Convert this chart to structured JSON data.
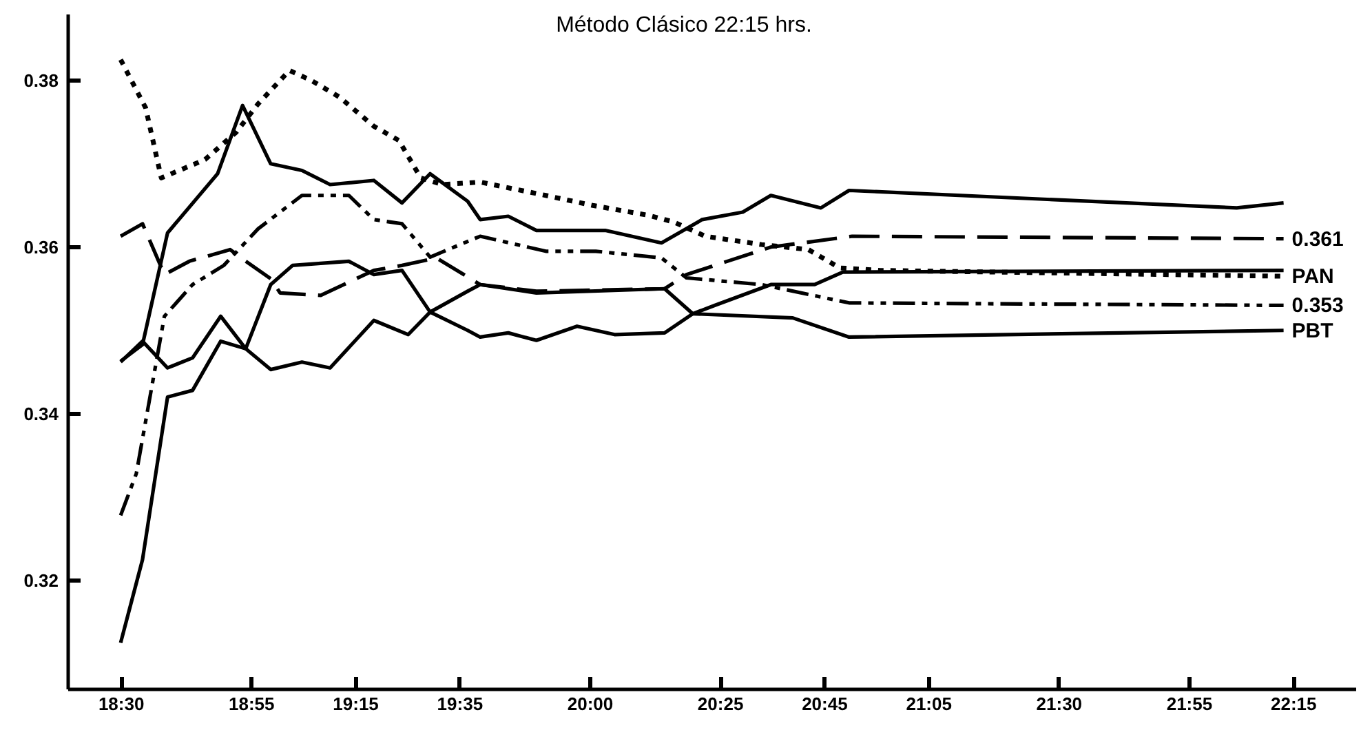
{
  "chart_data": {
    "type": "line",
    "title": "Método Clásico 22:15 hrs.",
    "xlim": [
      18.33,
      22.45
    ],
    "ylim": [
      0.307,
      0.388
    ],
    "xticks": [
      {
        "value": 18.5,
        "label": "18:30"
      },
      {
        "value": 18.9167,
        "label": "18:55"
      },
      {
        "value": 19.25,
        "label": "19:15"
      },
      {
        "value": 19.5833,
        "label": "19:35"
      },
      {
        "value": 20,
        "label": "20:00"
      },
      {
        "value": 20.4167,
        "label": "20:25"
      },
      {
        "value": 20.75,
        "label": "20:45"
      },
      {
        "value": 21.0833,
        "label": "21:05"
      },
      {
        "value": 21.5,
        "label": "21:30"
      },
      {
        "value": 21.9167,
        "label": "21:55"
      },
      {
        "value": 22.25,
        "label": "22:15"
      }
    ],
    "yticks": [
      0.32,
      0.34,
      0.36,
      0.38
    ],
    "grid": false,
    "marker": "none",
    "series": [
      {
        "color": "#000000",
        "line_style": "solid",
        "x": [
          18.5,
          18.57,
          18.65,
          18.81,
          18.89,
          18.98,
          19.08,
          19.17,
          19.31,
          19.4,
          19.49,
          19.61,
          19.65,
          19.74,
          19.83,
          20.05,
          20.23,
          20.36,
          20.49,
          20.58,
          20.74,
          20.83,
          22.07,
          22.22
        ],
        "values": [
          0.3463,
          0.3483,
          0.3617,
          0.3688,
          0.377,
          0.37,
          0.3692,
          0.3675,
          0.368,
          0.3653,
          0.3688,
          0.3655,
          0.3633,
          0.3637,
          0.362,
          0.362,
          0.3605,
          0.3633,
          0.3642,
          0.3662,
          0.3647,
          0.3668,
          0.3647,
          0.3653
        ]
      },
      {
        "name": "0.361",
        "color": "#000000",
        "line_style": "dashed",
        "x": [
          18.5,
          18.57,
          18.64,
          18.72,
          18.85,
          18.9,
          18.98,
          19.01,
          19.14,
          19.31,
          19.4,
          19.51,
          19.65,
          19.83,
          20.24,
          20.31,
          20.58,
          20.84,
          22.22
        ],
        "values": [
          0.3613,
          0.3628,
          0.3567,
          0.3583,
          0.3597,
          0.3583,
          0.3562,
          0.3545,
          0.3542,
          0.3572,
          0.3578,
          0.3587,
          0.3555,
          0.3547,
          0.355,
          0.3567,
          0.36,
          0.3613,
          0.361
        ]
      },
      {
        "name": "PAN",
        "color": "#000000",
        "line_style": "dotted",
        "x": [
          18.5,
          18.58,
          18.63,
          18.77,
          18.87,
          18.94,
          19.04,
          19.11,
          19.2,
          19.31,
          19.39,
          19.46,
          19.53,
          19.65,
          19.86,
          20.01,
          20.19,
          20.27,
          20.37,
          20.55,
          20.7,
          20.8,
          20.93,
          22.22
        ],
        "values": [
          0.3825,
          0.3767,
          0.3683,
          0.3705,
          0.3738,
          0.3772,
          0.3812,
          0.38,
          0.378,
          0.3745,
          0.3728,
          0.3683,
          0.3675,
          0.3678,
          0.3662,
          0.365,
          0.3638,
          0.363,
          0.3613,
          0.3603,
          0.3597,
          0.3575,
          0.3572,
          0.3565
        ]
      },
      {
        "color": "#000000",
        "line_style": "solid",
        "x": [
          18.5,
          18.57,
          18.65,
          18.73,
          18.82,
          18.9,
          18.98,
          19.05,
          19.23,
          19.31,
          19.4,
          19.49,
          19.61,
          19.65,
          19.74,
          19.83,
          19.96,
          20.08,
          20.24,
          20.33,
          20.4,
          20.58,
          20.72,
          20.81,
          22.22
        ],
        "values": [
          0.3462,
          0.3487,
          0.3455,
          0.3467,
          0.3517,
          0.3478,
          0.3555,
          0.3578,
          0.3583,
          0.3567,
          0.3572,
          0.3522,
          0.35,
          0.3492,
          0.3497,
          0.3488,
          0.3505,
          0.3495,
          0.3497,
          0.352,
          0.353,
          0.3555,
          0.3555,
          0.357,
          0.3572
        ]
      },
      {
        "name": "0.353",
        "color": "#000000",
        "line_style": "dashdot",
        "x": [
          18.5,
          18.55,
          18.64,
          18.73,
          18.83,
          18.94,
          19.08,
          19.23,
          19.31,
          19.4,
          19.49,
          19.65,
          19.86,
          20.02,
          20.23,
          20.31,
          20.55,
          20.83,
          22.22
        ],
        "values": [
          0.3278,
          0.3328,
          0.3517,
          0.3555,
          0.3578,
          0.3622,
          0.3662,
          0.3662,
          0.3633,
          0.3628,
          0.3588,
          0.3613,
          0.3595,
          0.3595,
          0.3587,
          0.3563,
          0.3555,
          0.3533,
          0.353
        ]
      },
      {
        "name": "PBT",
        "color": "#000000",
        "line_style": "solid",
        "x": [
          18.5,
          18.57,
          18.65,
          18.73,
          18.82,
          18.9,
          18.98,
          19.08,
          19.17,
          19.31,
          19.42,
          19.49,
          19.61,
          19.65,
          19.83,
          20.24,
          20.33,
          20.65,
          20.83,
          22.22
        ],
        "values": [
          0.3125,
          0.3225,
          0.342,
          0.3428,
          0.3487,
          0.3478,
          0.3453,
          0.3462,
          0.3455,
          0.3512,
          0.3495,
          0.3522,
          0.3547,
          0.3555,
          0.3545,
          0.355,
          0.352,
          0.3515,
          0.3492,
          0.35
        ]
      }
    ]
  }
}
